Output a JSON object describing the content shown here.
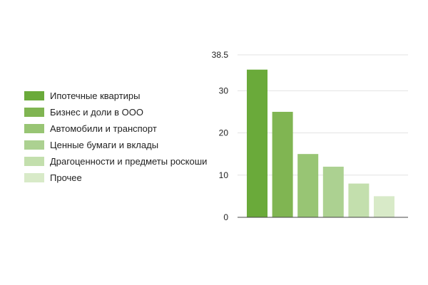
{
  "chart_data": {
    "type": "bar",
    "categories": [
      "Ипотечные квартиры",
      "Бизнес и доли в ООО",
      "Автомобили и транспорт",
      "Ценные бумаги и вклады",
      "Драгоценности и предметы роскоши",
      "Прочее"
    ],
    "values": [
      35,
      25,
      15,
      12,
      8,
      5
    ],
    "colors": [
      "#6aaa3a",
      "#80b552",
      "#98c574",
      "#acd191",
      "#c3dfad",
      "#d8eac8"
    ],
    "ylim": [
      0,
      38.5
    ],
    "yticks": [
      {
        "value": 0,
        "label": "0"
      },
      {
        "value": 10,
        "label": "10"
      },
      {
        "value": 20,
        "label": "20"
      },
      {
        "value": 30,
        "label": "30"
      },
      {
        "value": 38.5,
        "label": "38.5"
      }
    ],
    "grid": true,
    "legend_position": "left"
  }
}
